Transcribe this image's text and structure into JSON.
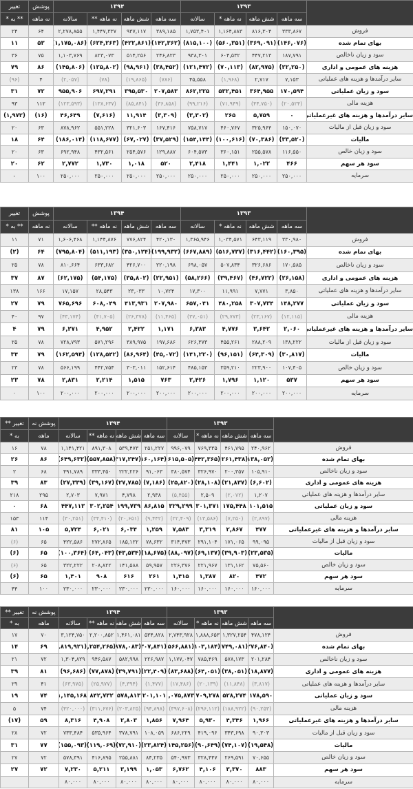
{
  "headers": {
    "y1393": "۱۳۹۳",
    "y1394": "۱۳۹۴",
    "sub1393": [
      "سه ماهه",
      "شش ماهه",
      "نه ماهه *",
      "سالانه"
    ],
    "sub1394": [
      "سه ماهه",
      "شش ماهه",
      "نه ماهه **",
      "سالانه"
    ]
  },
  "colors": {
    "header_bg": "#3b3b3b",
    "row_light": "#ececec",
    "row_bold": "#ffffff"
  },
  "tables": [
    {
      "coverage_h1": "پوشش",
      "coverage_h2": "نه ماهه",
      "change_h1": "تغییر",
      "change_h2": "** به *",
      "rows": [
        {
          "label": "فروش",
          "style": "light",
          "v": [
            "۳۳۳,۸۶۷",
            "۸۱۶,۳۰۴",
            "۱,۱۶۴,۸۸۳",
            "۱,۷۵۳,۴۰۱",
            "۳۸۹,۱۸۵",
            "۹۳۷,۱۱۷",
            "۱,۴۴۷,۳۳۷",
            "۲,۲۷۸,۸۵۵",
            "۶۴",
            "۲۴"
          ]
        },
        {
          "label": "بهای تمام شده",
          "style": "bold",
          "v": [
            "(۱۴۶,۰۷۶)",
            "(۳۶۹,۰۹۱)",
            "(۵۶۰,۳۵۱)",
            "(۸۱۵,۱۰۰)",
            "(۱۴۲,۳۶۲)",
            "(۴۲۲,۸۶۱)",
            "(۶۲۴,۲۶۳)",
            "(۱,۱۷۵,۰۸۶)",
            "۵۳",
            "۱۱"
          ]
        },
        {
          "label": "سود و زیان ناخالص",
          "style": "light",
          "v": [
            "۱۸۷,۷۹۱",
            "۴۴۷,۲۱۳",
            "۶۰۴,۵۳۲",
            "۹۳۸,۳۰۱",
            "۲۴۶,۸۲۳",
            "۵۱۴,۲۵۶",
            "۸۲۳,۰۷۳",
            "۱,۱۰۳,۷۶۹",
            "۷۵",
            "۳۶"
          ]
        },
        {
          "label": "هزینه های عمومی و اداری",
          "style": "bold",
          "v": [
            "(۲۲,۲۵۰)",
            "(۸۲,۹۷۵)",
            "(۷۰,۱۱۳)",
            "(۱۲۱,۴۷۲)",
            "(۳۸,۴۵۲)",
            "(۹۸,۹۶۱)",
            "(۱۲۵,۸۰۲)",
            "(۱۴۵,۸۰۶)",
            "۸۶",
            "۷۹"
          ]
        },
        {
          "label": "سایر درآمدها و هزینه های عملیاتی",
          "style": "light",
          "v": [
            "۷,۱۵۳",
            "۲,۷۱۷",
            "(۱,۹۶۸)",
            "۴۵,۵۵۸",
            "(۷۸۶)",
            "(۱۹,۸۶۵)",
            "(۷۸)",
            "(۲,۰۵۷)",
            "۴",
            "(۹۶)"
          ]
        },
        {
          "label": "سود و زیان عملیاتی",
          "style": "bold",
          "v": [
            "۱۷۰,۵۹۴",
            "۳۶۴,۹۵۵",
            "۵۳۲,۴۵۱",
            "۸۶۲,۲۲۵",
            "۲۰۷,۵۸۳",
            "۳۹۵,۵۳۰",
            "۶۹۷,۲۹۱",
            "۹۵۵,۹۰۶",
            "۷۲",
            "۳۱"
          ]
        },
        {
          "label": "هزینه مالی",
          "style": "light",
          "v": [
            "(۲۰,۵۲۴)",
            "(۴۴,۷۵۰)",
            "(۷۱,۹۴۹)",
            "(۹۹,۲۱۶)",
            "(۳۶,۸۵۸)",
            "(۸۵,۸۴۱)",
            "(۱۳۸,۶۳۷)",
            "(۱۲۳,۵۹۳)",
            "۱۱۲",
            "۹۳"
          ]
        },
        {
          "label": "سایر درآمدها و هزینه های غیرعملیاتی",
          "style": "bold",
          "v": [
            "۰",
            "۵,۷۵۹",
            "۲۶۵",
            "(۳,۳۰۲)",
            "(۳,۳۰۹)",
            "۱۱,۹۱۴",
            "(۷,۶۱۶)",
            "۴۶,۶۴۹",
            "(۱۶)",
            "(۱,۹۷۲)"
          ]
        },
        {
          "label": "سود و زیان قبل از مالیات",
          "style": "light",
          "v": [
            "۱۵۰,۰۷۰",
            "۳۲۵,۹۶۴",
            "۴۶۰,۷۶۷",
            "۷۵۸,۷۱۷",
            "۱۶۷,۴۱۶",
            "۳۲۱,۶۰۳",
            "۵۵۱,۲۲۸",
            "۸۷۸,۹۶۲",
            "۶۳",
            "۲۰"
          ]
        },
        {
          "label": "مالیات",
          "style": "bold",
          "v": [
            "(۳۳,۵۲۰)",
            "(۷۰,۳۸۶)",
            "(۱۰۰,۶۱۶)",
            "(۱۵۴,۱۴۴)",
            "(۳۷,۵۲۹)",
            "(۶۷,۰۲۷)",
            "(۱۱۸,۶۷۷)",
            "(۱۸۶,۰۱۴)",
            "۶۴",
            "۱۸"
          ]
        },
        {
          "label": "سود و زیان خالص",
          "style": "light",
          "v": [
            "۱۱۶,۵۵۰",
            "۲۵۵,۵۷۸",
            "۳۶۰,۱۵۱",
            "۶۰۴,۵۷۳",
            "۱۲۹,۸۸۷",
            "۲۵۴,۵۷۶",
            "۴۳۲,۵۶۱",
            "۶۹۲,۹۴۸",
            "۶۳",
            "۲۰"
          ]
        },
        {
          "label": "سود هر سهم",
          "style": "bold",
          "v": [
            "۴۶۶",
            "۱,۰۲۲",
            "۱,۴۴۱",
            "۲,۴۱۸",
            "۵۲۰",
            "۱,۰۱۸",
            "۱,۷۳۰",
            "۲,۷۷۲",
            "۶۲",
            "۲۰"
          ]
        },
        {
          "label": "سرمایه",
          "style": "light",
          "v": [
            "۲۵۰,۰۰۰",
            "۲۵۰,۰۰۰",
            "۲۵۰,۰۰۰",
            "۲۵۰,۰۰۰",
            "۲۵۰,۰۰۰",
            "۲۵۰,۰۰۰",
            "۲۵۰,۰۰۰",
            "۲۵۰,۰۰۰",
            "۱۰۰",
            "-"
          ]
        }
      ]
    },
    {
      "coverage_h1": "پوشش",
      "coverage_h2": "نه ماهه",
      "change_h1": "تغییر",
      "change_h2": "** به *",
      "rows": [
        {
          "label": "فروش",
          "style": "light",
          "v": [
            "۳۳۰,۹۸۰",
            "۶۴۳,۱۱۹",
            "۱,۰۳۴,۵۷۱",
            "۱,۳۶۵,۹۴۶",
            "۴۲۰,۱۳۰",
            "۷۷۶,۸۲۴",
            "۱,۱۴۴,۸۷۶",
            "۱,۶۰۶,۴۶۸",
            "۷۱",
            "۱۱"
          ]
        },
        {
          "label": "بهای تمام شده",
          "style": "bold",
          "v": [
            "(۱۶۰,۳۹۵)",
            "(۳۱۶,۴۴۲)",
            "(۵۱۶,۷۳۷)",
            "(۶۶۷,۸۸۹)",
            "(۱۹۹,۹۳۲)",
            "(۳۵۰,۱۲۴)",
            "(۵۱۱,۱۹۳)",
            "(۷۹۵,۸۰۴)",
            "۶۴",
            "(۲)"
          ]
        },
        {
          "label": "سود و زیان ناخالص",
          "style": "light",
          "v": [
            "۱۷۰,۵۸۵",
            "۳۲۶,۶۸۶",
            "۵۰۷,۸۳۴",
            "۶۹۸,۰۵۷",
            "۲۲۰,۱۹۸",
            "۴۲۶,۷۰۰",
            "۶۳۳,۶۸۲",
            "۸۱۰,۶۶۴",
            "۷۸",
            "۲۵"
          ]
        },
        {
          "label": "هزینه های عمومی و اداری",
          "style": "bold",
          "v": [
            "(۲۶,۱۵۸)",
            "(۴۶,۷۲۲)",
            "(۳۹,۴۶۷)",
            "(۵۸,۲۶۶)",
            "(۲۲,۹۵۱)",
            "(۳۵,۸۰۲)",
            "(۵۴,۱۷۵)",
            "(۶۲,۱۷۵)",
            "۸۷",
            "۳۷"
          ]
        },
        {
          "label": "سایر درآمدها و هزینه های عملیاتی",
          "style": "light",
          "v": [
            "۳,۸۵۰",
            "۷,۷۷۱",
            "۱۱,۹۹۱",
            "۱۷,۳۰۰",
            "۱۰,۷۲۴",
            "۲۳,۰۳۳",
            "۲۸,۵۴۳",
            "۱۷,۱۵۷",
            "۱۶۶",
            "۱۳۸"
          ]
        },
        {
          "label": "سود و زیان عملیاتی",
          "style": "bold",
          "v": [
            "۱۴۸,۲۷۷",
            "۳۰۷,۷۳۴",
            "۴۸۰,۲۵۸",
            "۶۵۷,۰۴۱",
            "۲۰۷,۹۸۰",
            "۴۱۳,۹۳۱",
            "۶۰۸,۰۴۹",
            "۷۶۵,۶۹۶",
            "۷۹",
            "۲۷"
          ]
        },
        {
          "label": "هزینه مالی",
          "style": "light",
          "v": [
            "(۱۲,۱۱۵)",
            "(۲۳,۱۶۷)",
            "(۲۹,۷۷۳)",
            "(۳۷,۰۵۱)",
            "(۱۱,۴۶۵)",
            "(۲۶,۳۷۸)",
            "(۴۱,۷۰۵)",
            "(۴۳,۱۷۴)",
            "۹۷",
            "۴۰"
          ]
        },
        {
          "label": "سایر درآمدها و هزینه های غیرعملیاتی",
          "style": "bold",
          "v": [
            "۲,۰۶۰",
            "۳,۶۴۲",
            "۴,۷۷۶",
            "۶,۳۸۳",
            "۱,۱۷۱",
            "۲,۴۲۲",
            "۴,۹۵۲",
            "۶,۲۷۱",
            "۷۹",
            "۴"
          ]
        },
        {
          "label": "سود و زیان قبل از مالیات",
          "style": "light",
          "v": [
            "۱۳۸,۲۲۲",
            "۲۸۸,۲۰۹",
            "۴۵۵,۲۶۱",
            "۶۲۶,۳۷۳",
            "۱۹۷,۶۸۶",
            "۳۸۹,۹۷۵",
            "۵۷۱,۲۹۶",
            "۷۲۸,۷۹۳",
            "۷۸",
            "۲۵"
          ]
        },
        {
          "label": "مالیات",
          "style": "bold",
          "v": [
            "(۳۰,۸۱۷)",
            "(۶۴,۳۰۹)",
            "(۹۶,۱۵۱)",
            "(۱۴۱,۲۲۰)",
            "(۴۵,۰۷۲)",
            "(۸۶,۹۶۴)",
            "(۱۲۸,۵۴۲)",
            "(۱۶۲,۵۹۴)",
            "۷۹",
            "۳۴"
          ]
        },
        {
          "label": "سود و زیان خالص",
          "style": "light",
          "v": [
            "۱۰۷,۴۰۵",
            "۲۲۳,۹۰۰",
            "۳۵۹,۲۱۰",
            "۴۸۵,۱۵۳",
            "۱۵۲,۶۱۴",
            "۳۰۳,۰۱۱",
            "۴۴۲,۷۵۴",
            "۵۶۶,۱۹۹",
            "۷۸",
            "۲۳"
          ]
        },
        {
          "label": "سود هر سهم",
          "style": "bold",
          "v": [
            "۵۳۷",
            "۱,۱۲۰",
            "۱,۷۹۶",
            "۲,۴۲۶",
            "۷۶۳",
            "۱,۵۱۵",
            "۲,۲۱۴",
            "۲,۸۳۱",
            "۷۸",
            "۲۳"
          ]
        },
        {
          "label": "سرمایه",
          "style": "light",
          "v": [
            "۲۰۰,۰۰۰",
            "۲۰۰,۰۰۰",
            "۲۰۰,۰۰۰",
            "۲۰۰,۰۰۰",
            "۲۰۰,۰۰۰",
            "۲۰۰,۰۰۰",
            "۲۰۰,۰۰۰",
            "۲۰۰,۰۰۰",
            "۱۰۰",
            "۰"
          ]
        }
      ]
    },
    {
      "coverage_h1": "پوشش نه",
      "coverage_h2": "ماهه",
      "change_h1": "تغییر **",
      "change_h2": "به *",
      "rows": [
        {
          "label": "فروش",
          "style": "light",
          "v": [
            "۲۴۰,۹۶۲",
            "۴۶۱,۷۹۵",
            "۷۶۹,۳۳۵",
            "۹۹۶,۰۷۹",
            "۲۵۱,۲۲۷",
            "۵۳۹,۴۷۳",
            "۸۹۱,۳۰۸",
            "۱,۱۴۱,۴۲۱",
            "۷۸",
            "۱۶"
          ]
        },
        {
          "label": "بهای تمام شده",
          "style": "bold",
          "v": [
            "(۱۳۸,۰۵۲)",
            "(۲۶۱,۴۳۸)",
            "(۴۴۲,۳۶۵)",
            "(۶۱۵,۵۰۵)",
            "(۱۶۰,۱۶۴)",
            "(۳۱۷,۲۴۷)",
            "(۵۵۷,۸۵۸)",
            "(۶۴۹,۶۳۲)",
            "۸۶",
            "۲۶"
          ]
        },
        {
          "label": "سود و زیان ناخالص",
          "style": "light",
          "v": [
            "۱۰۵,۹۱۰",
            "۲۰۰,۳۵۷",
            "۳۲۶,۹۷۰",
            "۳۸۰,۵۷۴",
            "۹۱,۰۶۳",
            "۲۲۲,۲۲۶",
            "۳۳۳,۴۵۰",
            "۴۹۱,۷۸۹",
            "۶۸",
            "۲"
          ]
        },
        {
          "label": "هزینه های عمومی و اداری",
          "style": "bold",
          "v": [
            "(۶,۶۰۲)",
            "(۲۱,۸۳۷)",
            "(۲۸,۱۰۸)",
            "(۲۵,۸۲۰)",
            "(۷,۱۸۶)",
            "(۲۷,۷۸۵)",
            "(۳۹,۱۶۷)",
            "(۲۷,۳۳۹)",
            "۸۳",
            "۳۹"
          ]
        },
        {
          "label": "سایر درآمدها و هزینه های عملیاتی",
          "style": "light",
          "v": [
            "۱,۲۰۷",
            "(۲,۰۷۲)",
            "۲,۵۰۹",
            "(۵,۴۵۵)",
            "۲,۹۳۸",
            "۴,۷۹۸",
            "۷,۹۷۱",
            "۲,۷۰۳",
            "۲۹۵",
            "۲۱۸"
          ]
        },
        {
          "label": "سود و زیان عملیاتی",
          "style": "bold",
          "v": [
            "۱۰۱,۵۱۵",
            "۱۷۵,۴۴۸",
            "۳۰۱,۳۷۱",
            "۳۲۹,۲۹۹",
            "۸۶,۸۱۵",
            "۱۹۹,۷۳۹",
            "۳۰۲,۲۵۴",
            "۴۴۷,۱۱۳",
            "۶۸",
            "۰"
          ]
        },
        {
          "label": "هزینه مالی",
          "style": "light",
          "v": [
            "(۲,۸۹۷)",
            "(۷,۲۵۰)",
            "(۱۳,۵۸۶)",
            "(۲۲,۴۰۹)",
            "(۹,۴۴۲)",
            "(۲۰,۶۵۱)",
            "(۳۴,۴۱۰)",
            "(۳۰,۲۵۱)",
            "۱۱۴",
            "۱۵۳"
          ]
        },
        {
          "label": "سایر درآمدها و هزینه های غیرعملیاتی",
          "style": "bold",
          "v": [
            "۴۷۷",
            "۲,۸۶۷",
            "۳,۳۱۹",
            "۷,۵۸۳",
            "۱,۲۵۹",
            "۶,۰۳۴",
            "۶,۰۲۱",
            "۵,۷۲۴",
            "۱۰۵",
            "۸۱"
          ]
        },
        {
          "label": "سود و زیان قبل از مالیات",
          "style": "light",
          "v": [
            "۹۹,۰۹۵",
            "۱۷۱,۰۶۵",
            "۲۹۱,۱۰۴",
            "۳۱۴,۴۷۳",
            "۷۸,۶۳۲",
            "۱۸۵,۱۲۲",
            "۲۷۲,۸۶۵",
            "۴۲۲,۵۸۶",
            "۶۵",
            "(۶)"
          ]
        },
        {
          "label": "مالیات",
          "style": "bold",
          "v": [
            "(۲۳,۵۳۵)",
            "(۳۹,۹۰۳)",
            "(۶۹,۱۳۷)",
            "(۸۸,۰۹۷)",
            "(۱۸,۶۷۵)",
            "(۴۳,۵۳۴)",
            "(۶۴,۰۴۳)",
            "(۱۰۰,۳۶۴)",
            "۶۵",
            "(۶)"
          ]
        },
        {
          "label": "سود و زیان خالص",
          "style": "light",
          "v": [
            "۷۵,۵۶۰",
            "۱۳۱,۱۶۲",
            "۲۲۱,۹۶۷",
            "۲۲۶,۳۷۶",
            "۵۹,۹۵۷",
            "۱۴۱,۵۸۸",
            "۲۰۸,۸۲۲",
            "۳۲۲,۲۲۲",
            "۶۵",
            "(۶)"
          ]
        },
        {
          "label": "سود هر سهم",
          "style": "bold",
          "v": [
            "۴۷۲",
            "۸۲۰",
            "۱,۳۸۷",
            "۱,۴۱۵",
            "۲۶۱",
            "۶۱۶",
            "۹۰۸",
            "۱,۴۰۱",
            "۶۵",
            "(۶)"
          ]
        },
        {
          "label": "سرمایه",
          "style": "light",
          "v": [
            "۱۶۰,۰۰۰",
            "۱۶۰,۰۰۰",
            "۱۶۰,۰۰۰",
            "۱۶۰,۰۰۰",
            "۲۳۰,۰۰۰",
            "۲۳۰,۰۰۰",
            "۲۳۰,۰۰۰",
            "۲۳۰,۰۰۰",
            "۱۰۰",
            "۴۴"
          ]
        }
      ]
    },
    {
      "coverage_h1": "پوشش نه",
      "coverage_h2": "ماهه",
      "change_h1": "تغییر **",
      "change_h2": "به *",
      "rows": [
        {
          "label": "فروش",
          "style": "light",
          "v": [
            "۴۷۸,۱۲۴",
            "۱,۳۲۷,۲۵۴",
            "۱,۸۸۸,۶۵۳",
            "۲,۷۴۳,۹۲۸",
            "۵۳۴,۸۲۸",
            "۱,۴۶۱,۰۸۱",
            "۲,۲۰۰,۸۵۲",
            "۳,۱۲۴,۷۵۰",
            "۷۰",
            "۱۷"
          ]
        },
        {
          "label": "بهای تمام شده",
          "style": "bold",
          "v": [
            "(۲۷۶,۸۴۰)",
            "(۷۴۹,۰۸۱)",
            "(۱,۱۰۳,۱۸۴)",
            "(۱,۵۶۶,۸۸۱)",
            "(۳۰۷,۸۴۱)",
            "(۸۷۸,۰۸۳)",
            "(۱,۲۵۴,۲۶۵)",
            "(۱,۸۱۹,۹۲۱)",
            "۶۹",
            "۱۴"
          ]
        },
        {
          "label": "سود و زیان ناخالص",
          "style": "light",
          "v": [
            "۲۰۱,۲۸۴",
            "۵۷۸,۱۷۳",
            "۷۸۵,۴۶۹",
            "۱,۱۷۷,۰۴۷",
            "۲۲۶,۹۸۷",
            "۵۸۲,۹۹۸",
            "۹۴۶,۵۸۷",
            "۱,۳۰۴,۸۲۹",
            "۷۲",
            "۲۱"
          ]
        },
        {
          "label": "هزینه های عمومی و اداری",
          "style": "bold",
          "v": [
            "(۱۸,۸۷۷)",
            "(۳۸,۰۵۱)",
            "(۶۴,۰۵۱)",
            "(۸۳,۶۸۸)",
            "(۲۲,۴۰۹)",
            "(۳۹,۷۹۱)",
            "(۷۷,۸۷۸)",
            "(۹۶,۶۸۶)",
            "۸۱",
            "۳۹"
          ]
        },
        {
          "label": "سایر درآمدها و هزینه های عملیاتی",
          "style": "light",
          "v": [
            "(۳,۸۱۷)",
            "(۱۱,۸۴۸)",
            "(۲۰,۱۳۹)",
            "(۱۷,۴۸۶)",
            "(۱,۴۷۷)",
            "(۴,۳۹۴)",
            "(۲۵,۹۷۷)",
            "(۶۳,۹۷۵)",
            "۴۱",
            "۲۹"
          ]
        },
        {
          "label": "سود و زیان عملیاتی",
          "style": "bold",
          "v": [
            "۱۷۸,۵۹۰",
            "۵۲۸,۲۷۴",
            "۷۰۹,۲۷۸",
            "۱,۰۷۵,۸۷۳",
            "۲۰۱,۱۰۱",
            "۵۷۸,۸۱۳",
            "۸۴۲,۷۳۲",
            "۱,۱۴۵,۱۶۸",
            "۷۴",
            "۱۹"
          ]
        },
        {
          "label": "هزینه مالی",
          "style": "light",
          "v": [
            "(۹۰,۲۵۳)",
            "(۱۸۸,۹۲۲)",
            "(۲۹۶,۱۱۲)",
            "(۳۹۷,۶۰۸)",
            "(۹۴,۸۹۸)",
            "(۲۰۳,۸۲۵)",
            "(۳۱۱,۶۷۶)",
            "(۴۲۰,۰۰۰)",
            "۷۴",
            "۵"
          ]
        },
        {
          "label": "سایر درآمدها و هزینه های غیرعملیاتی",
          "style": "bold",
          "v": [
            "۱,۹۶۶",
            "۴,۳۴۶",
            "۵,۹۳۰",
            "۷,۹۶۴",
            "۱,۸۵۶",
            "۲,۸۰۳",
            "۴,۹۰۸",
            "۸,۳۱۶",
            "۵۹",
            "(۱۷)"
          ]
        },
        {
          "label": "سود و زیان قبل از مالیات",
          "style": "light",
          "v": [
            "۹۰,۳۰۳",
            "۳۴۳,۶۹۸",
            "۴۱۹,۰۹۶",
            "۶۸۶,۲۲۹",
            "۱۰۸,۰۵۹",
            "۳۷۸,۷۹۱",
            "۵۳۵,۹۶۴",
            "۷۳۳,۴۸۴",
            "۷۲",
            "۲۸"
          ]
        },
        {
          "label": "مالیات",
          "style": "bold",
          "v": [
            "(۱۹,۵۴۸)",
            "(۷۴,۱۰۷)",
            "(۹۰,۶۴۹)",
            "(۱۴۵,۲۵۶)",
            "(۲۳,۸۲۴)",
            "(۷۲,۹۱۰)",
            "(۱۱۹,۰۶۹)",
            "(۱۵۵,۰۹۳)",
            "۷۷",
            "۳۱"
          ]
        },
        {
          "label": "سود و زیان خالص",
          "style": "light",
          "v": [
            "۷۰,۶۵۵",
            "۲۶۹,۵۹۱",
            "۳۲۸,۴۴۷",
            "۵۴۰,۹۷۳",
            "۸۴,۲۳۵",
            "۲۵۵,۸۸۱",
            "۴۱۶,۸۹۵",
            "۵۷۸,۳۹۱",
            "۷۲",
            "۲۷"
          ]
        },
        {
          "label": "سود هر سهم",
          "style": "bold",
          "v": [
            "۸۸۳",
            "۳,۳۷۰",
            "۴,۱۰۶",
            "۶,۷۶۲",
            "۱,۰۵۳",
            "۳,۱۹۹",
            "۵,۲۱۱",
            "۷,۲۳۰",
            "۷۲",
            "۲۷"
          ]
        },
        {
          "label": "سرمایه",
          "style": "light",
          "v": [
            "۸۰,۰۰۰",
            "۸۰,۰۰۰",
            "۸۰,۰۰۰",
            "۸۰,۰۰۰",
            "۸۰,۰۰۰",
            "۸۰,۰۰۰",
            "۸۰,۰۰۰",
            "۸۰,۰۰۰",
            "",
            ""
          ]
        }
      ]
    }
  ]
}
